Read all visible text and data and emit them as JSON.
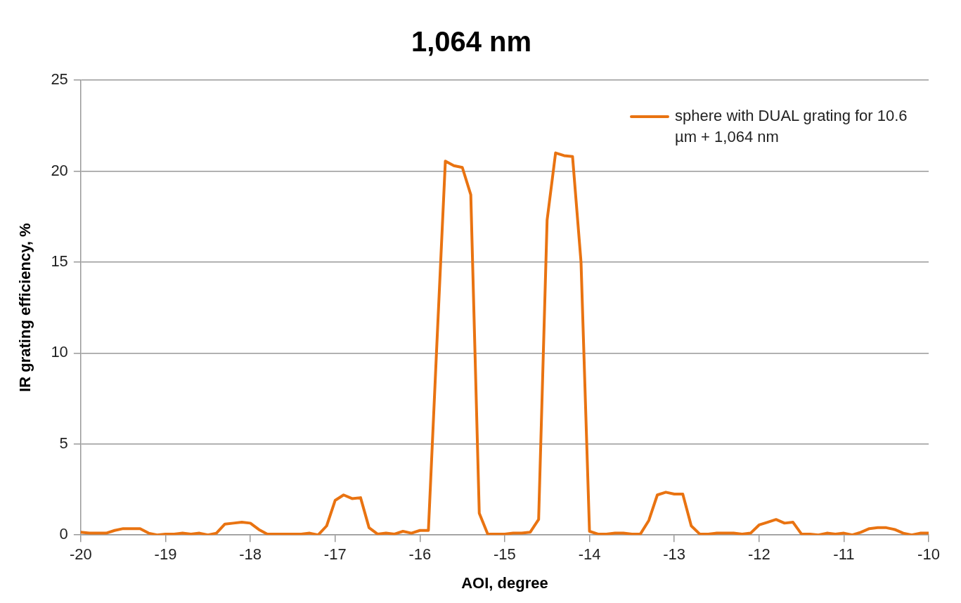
{
  "chart_data": {
    "type": "line",
    "title": "1,064 nm",
    "xlabel": "AOI, degree",
    "ylabel": "IR grating efficiency, %",
    "x": [
      -20,
      -19.9,
      -19.8,
      -19.7,
      -19.6,
      -19.5,
      -19.4,
      -19.3,
      -19.2,
      -19.1,
      -19,
      -18.9,
      -18.8,
      -18.7,
      -18.6,
      -18.5,
      -18.4,
      -18.3,
      -18.2,
      -18.1,
      -18,
      -17.9,
      -17.8,
      -17.7,
      -17.6,
      -17.5,
      -17.4,
      -17.3,
      -17.2,
      -17.1,
      -17,
      -16.9,
      -16.8,
      -16.7,
      -16.6,
      -16.5,
      -16.4,
      -16.3,
      -16.2,
      -16.1,
      -16,
      -15.9,
      -15.8,
      -15.7,
      -15.6,
      -15.5,
      -15.4,
      -15.3,
      -15.2,
      -15.1,
      -15,
      -14.9,
      -14.8,
      -14.7,
      -14.6,
      -14.5,
      -14.4,
      -14.3,
      -14.2,
      -14.1,
      -14,
      -13.9,
      -13.8,
      -13.7,
      -13.6,
      -13.5,
      -13.4,
      -13.3,
      -13.2,
      -13.1,
      -13,
      -12.9,
      -12.8,
      -12.7,
      -12.6,
      -12.5,
      -12.4,
      -12.3,
      -12.2,
      -12.1,
      -12,
      -11.9,
      -11.8,
      -11.7,
      -11.6,
      -11.5,
      -11.4,
      -11.3,
      -11.2,
      -11.1,
      -11,
      -10.9,
      -10.8,
      -10.7,
      -10.6,
      -10.5,
      -10.4,
      -10.3,
      -10.2,
      -10.1,
      -10
    ],
    "series": [
      {
        "name": "sphere with DUAL grating for 10.6 µm + 1,064 nm",
        "color": "#e97311",
        "values": [
          0.15,
          0.1,
          0.1,
          0.1,
          0.25,
          0.35,
          0.35,
          0.35,
          0.1,
          0,
          0.05,
          0.05,
          0.1,
          0.05,
          0.1,
          0,
          0.1,
          0.6,
          0.65,
          0.7,
          0.65,
          0.3,
          0.05,
          0.05,
          0.05,
          0.05,
          0.05,
          0.1,
          0,
          0.5,
          1.9,
          2.2,
          2,
          2.05,
          0.4,
          0.05,
          0.1,
          0.05,
          0.2,
          0.1,
          0.25,
          0.25,
          10.5,
          20.55,
          20.3,
          20.2,
          18.7,
          1.2,
          0.05,
          0.05,
          0.05,
          0.1,
          0.1,
          0.15,
          0.85,
          17.3,
          21,
          20.85,
          20.8,
          15,
          0.2,
          0.05,
          0.05,
          0.1,
          0.1,
          0.05,
          0.05,
          0.8,
          2.2,
          2.35,
          2.25,
          2.25,
          0.5,
          0.05,
          0.05,
          0.1,
          0.1,
          0.1,
          0.05,
          0.1,
          0.55,
          0.7,
          0.85,
          0.65,
          0.7,
          0.05,
          0.05,
          0,
          0.1,
          0.05,
          0.1,
          0,
          0.15,
          0.35,
          0.4,
          0.4,
          0.3,
          0.1,
          0,
          0.1,
          0.1
        ]
      }
    ],
    "xlim": [
      -20,
      -10
    ],
    "xticks": [
      -20,
      -19,
      -18,
      -17,
      -16,
      -15,
      -14,
      -13,
      -12,
      -11,
      -10
    ],
    "ylim": [
      0,
      25
    ],
    "yticks": [
      0,
      5,
      10,
      15,
      20,
      25
    ],
    "grid": "y",
    "legend": "top right",
    "marker": "none",
    "line_style": "solid"
  }
}
